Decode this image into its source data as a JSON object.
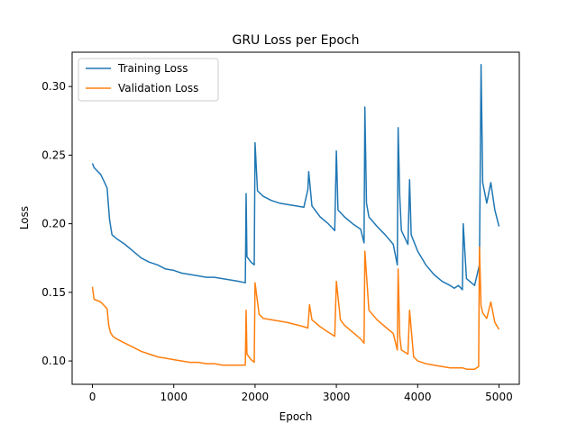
{
  "chart_data": {
    "type": "line",
    "title": "GRU Loss per Epoch",
    "xlabel": "Epoch",
    "ylabel": "Loss",
    "xlim": [
      -250,
      5250
    ],
    "ylim": [
      0.083,
      0.325
    ],
    "x_ticks": [
      0,
      1000,
      2000,
      3000,
      4000,
      5000
    ],
    "x_tick_labels": [
      "0",
      "1000",
      "2000",
      "3000",
      "4000",
      "5000"
    ],
    "y_ticks": [
      0.1,
      0.15,
      0.2,
      0.25,
      0.3
    ],
    "y_tick_labels": [
      "0.10",
      "0.15",
      "0.20",
      "0.25",
      "0.30"
    ],
    "grid": false,
    "legend_position": "top-left",
    "series": [
      {
        "name": "Training Loss",
        "color": "#1f77b4",
        "x": [
          0,
          20,
          50,
          100,
          150,
          180,
          210,
          240,
          300,
          400,
          500,
          600,
          700,
          800,
          900,
          1000,
          1100,
          1200,
          1300,
          1400,
          1500,
          1600,
          1700,
          1800,
          1880,
          1890,
          1900,
          1950,
          1990,
          2000,
          2030,
          2100,
          2200,
          2300,
          2400,
          2500,
          2600,
          2650,
          2660,
          2700,
          2800,
          2900,
          2980,
          3000,
          3020,
          3100,
          3200,
          3300,
          3340,
          3350,
          3370,
          3400,
          3500,
          3600,
          3700,
          3750,
          3760,
          3780,
          3800,
          3880,
          3900,
          3920,
          4000,
          4100,
          4200,
          4300,
          4400,
          4450,
          4500,
          4550,
          4560,
          4600,
          4700,
          4760,
          4780,
          4800,
          4850,
          4900,
          4950,
          5000
        ],
        "y": [
          0.244,
          0.241,
          0.239,
          0.236,
          0.23,
          0.226,
          0.203,
          0.192,
          0.189,
          0.185,
          0.18,
          0.175,
          0.172,
          0.17,
          0.167,
          0.166,
          0.164,
          0.163,
          0.162,
          0.161,
          0.161,
          0.16,
          0.159,
          0.158,
          0.157,
          0.222,
          0.176,
          0.172,
          0.17,
          0.259,
          0.224,
          0.22,
          0.217,
          0.215,
          0.214,
          0.213,
          0.212,
          0.225,
          0.238,
          0.213,
          0.205,
          0.2,
          0.195,
          0.253,
          0.21,
          0.205,
          0.2,
          0.196,
          0.186,
          0.285,
          0.215,
          0.205,
          0.198,
          0.192,
          0.185,
          0.17,
          0.27,
          0.22,
          0.195,
          0.185,
          0.232,
          0.192,
          0.18,
          0.17,
          0.163,
          0.158,
          0.155,
          0.153,
          0.155,
          0.152,
          0.2,
          0.16,
          0.155,
          0.17,
          0.316,
          0.23,
          0.215,
          0.23,
          0.21,
          0.198
        ]
      },
      {
        "name": "Validation Loss",
        "color": "#ff7f0e",
        "x": [
          0,
          20,
          100,
          150,
          180,
          200,
          220,
          250,
          300,
          400,
          500,
          600,
          700,
          800,
          900,
          1000,
          1100,
          1200,
          1300,
          1400,
          1500,
          1600,
          1700,
          1800,
          1880,
          1890,
          1900,
          1950,
          1990,
          2000,
          2050,
          2100,
          2200,
          2400,
          2600,
          2650,
          2670,
          2700,
          2800,
          2900,
          2980,
          3000,
          3050,
          3100,
          3200,
          3300,
          3340,
          3350,
          3400,
          3500,
          3600,
          3700,
          3750,
          3760,
          3780,
          3800,
          3880,
          3900,
          3950,
          4000,
          4100,
          4200,
          4300,
          4400,
          4450,
          4500,
          4550,
          4600,
          4700,
          4750,
          4760,
          4780,
          4800,
          4850,
          4900,
          4950,
          5000
        ],
        "y": [
          0.154,
          0.145,
          0.143,
          0.14,
          0.138,
          0.126,
          0.121,
          0.118,
          0.116,
          0.113,
          0.11,
          0.107,
          0.105,
          0.103,
          0.102,
          0.101,
          0.1,
          0.099,
          0.099,
          0.098,
          0.098,
          0.097,
          0.097,
          0.097,
          0.097,
          0.137,
          0.105,
          0.101,
          0.099,
          0.157,
          0.134,
          0.131,
          0.13,
          0.128,
          0.125,
          0.124,
          0.141,
          0.13,
          0.125,
          0.121,
          0.118,
          0.158,
          0.13,
          0.126,
          0.121,
          0.116,
          0.113,
          0.18,
          0.137,
          0.13,
          0.125,
          0.12,
          0.108,
          0.167,
          0.118,
          0.108,
          0.105,
          0.137,
          0.103,
          0.1,
          0.098,
          0.097,
          0.096,
          0.095,
          0.095,
          0.095,
          0.095,
          0.094,
          0.094,
          0.096,
          0.183,
          0.14,
          0.135,
          0.131,
          0.143,
          0.128,
          0.123
        ]
      }
    ]
  }
}
